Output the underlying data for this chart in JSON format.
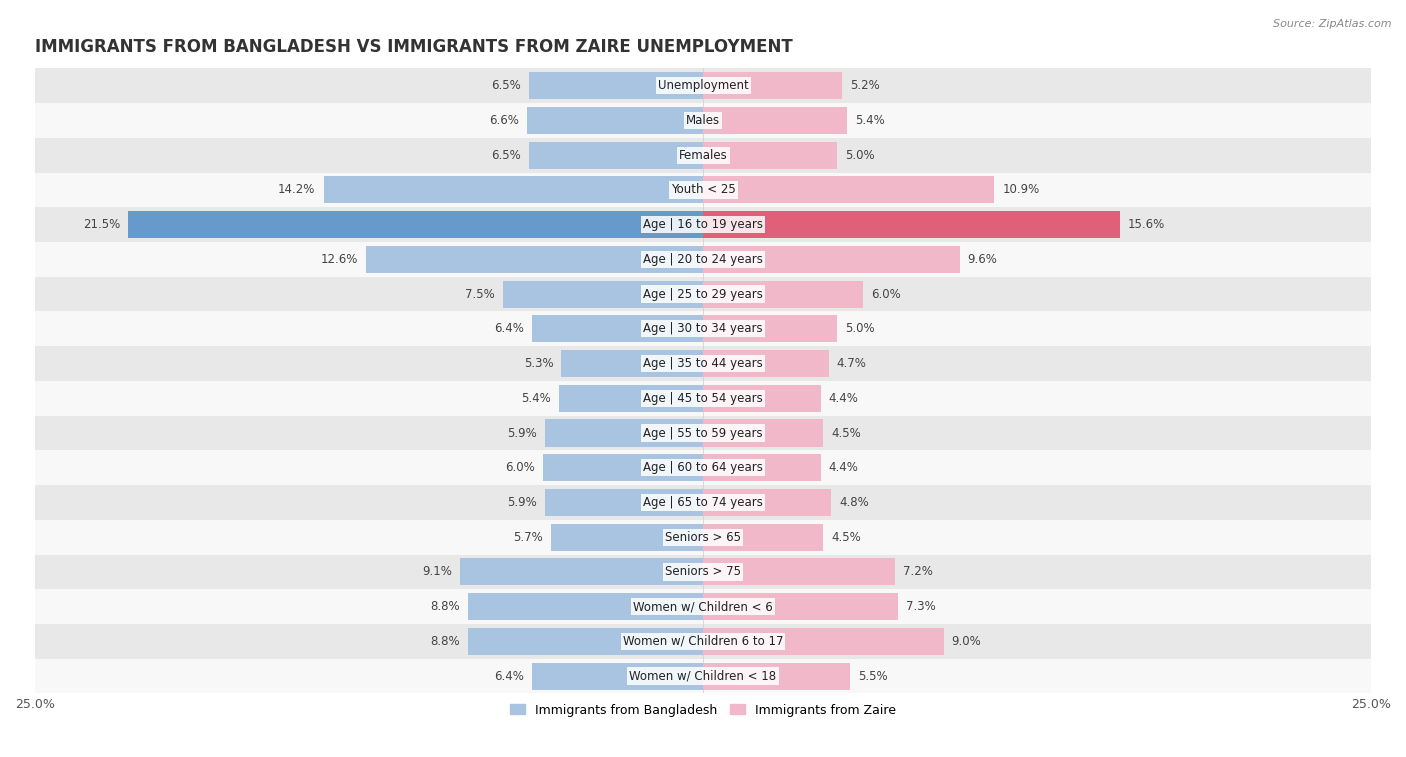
{
  "title": "IMMIGRANTS FROM BANGLADESH VS IMMIGRANTS FROM ZAIRE UNEMPLOYMENT",
  "source": "Source: ZipAtlas.com",
  "categories": [
    "Unemployment",
    "Males",
    "Females",
    "Youth < 25",
    "Age | 16 to 19 years",
    "Age | 20 to 24 years",
    "Age | 25 to 29 years",
    "Age | 30 to 34 years",
    "Age | 35 to 44 years",
    "Age | 45 to 54 years",
    "Age | 55 to 59 years",
    "Age | 60 to 64 years",
    "Age | 65 to 74 years",
    "Seniors > 65",
    "Seniors > 75",
    "Women w/ Children < 6",
    "Women w/ Children 6 to 17",
    "Women w/ Children < 18"
  ],
  "bangladesh_values": [
    6.5,
    6.6,
    6.5,
    14.2,
    21.5,
    12.6,
    7.5,
    6.4,
    5.3,
    5.4,
    5.9,
    6.0,
    5.9,
    5.7,
    9.1,
    8.8,
    8.8,
    6.4
  ],
  "zaire_values": [
    5.2,
    5.4,
    5.0,
    10.9,
    15.6,
    9.6,
    6.0,
    5.0,
    4.7,
    4.4,
    4.5,
    4.4,
    4.8,
    4.5,
    7.2,
    7.3,
    9.0,
    5.5
  ],
  "bangladesh_color": "#a8c4e0",
  "zaire_color": "#f0b8c8",
  "bangladesh_highlight_color": "#6699cc",
  "zaire_highlight_color": "#e0607a",
  "highlight_index": 4,
  "xlim": 25.0,
  "bar_height": 0.78,
  "bg_color_odd": "#e8e8e8",
  "bg_color_even": "#f8f8f8",
  "legend_bangladesh": "Immigrants from Bangladesh",
  "legend_zaire": "Immigrants from Zaire",
  "title_fontsize": 12,
  "source_fontsize": 8,
  "value_fontsize": 8.5,
  "category_fontsize": 8.5,
  "axis_label_fontsize": 9,
  "legend_fontsize": 9
}
